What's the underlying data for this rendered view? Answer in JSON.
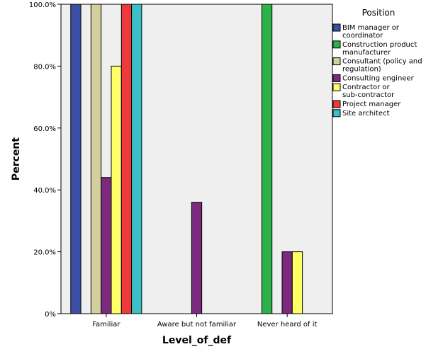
{
  "chart_data": {
    "type": "bar",
    "xlabel": "Level_of_def",
    "ylabel": "Percent",
    "ylim": [
      0,
      100
    ],
    "yticks": [
      "0%",
      "20.0%",
      "40.0%",
      "60.0%",
      "80.0%",
      "100.0%"
    ],
    "categories": [
      "Familiar",
      "Aware but not familiar",
      "Never heard of it"
    ],
    "legend": {
      "title": "Position",
      "placement": "right"
    },
    "grid": false,
    "series": [
      {
        "name": "BIM manager or coordinator",
        "color": "#3A4FA5",
        "values": [
          100,
          null,
          null
        ]
      },
      {
        "name": "Construction product manufacturer",
        "color": "#2DB14A",
        "values": [
          null,
          null,
          100
        ]
      },
      {
        "name": "Consultant (policy and regulation)",
        "color": "#D4CF9E",
        "values": [
          100,
          null,
          null
        ]
      },
      {
        "name": "Consulting engineer",
        "color": "#7B2A7E",
        "values": [
          44,
          36,
          20
        ]
      },
      {
        "name": "Contractor or sub-contractor",
        "color": "#FFFF66",
        "values": [
          80,
          null,
          20
        ]
      },
      {
        "name": "Project manager",
        "color": "#EE3A3A",
        "values": [
          100,
          null,
          null
        ]
      },
      {
        "name": "Site architect",
        "color": "#3CC0C8",
        "values": [
          100,
          null,
          null
        ]
      }
    ]
  }
}
